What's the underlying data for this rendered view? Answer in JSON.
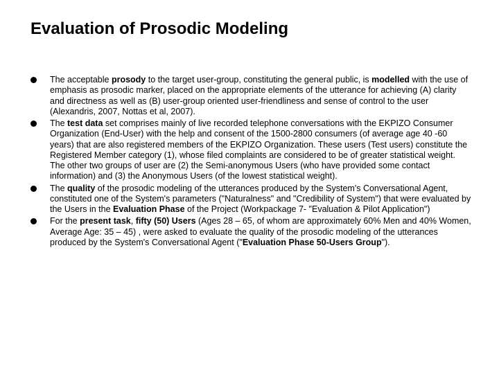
{
  "slide": {
    "title": "Evaluation of Prosodic Modeling",
    "title_fontsize": 24,
    "body_fontsize": 12.5,
    "bullet_color": "#000000",
    "text_color": "#000000",
    "background_color": "#ffffff",
    "bullets": [
      {
        "runs": [
          {
            "t": "The acceptable ",
            "b": false
          },
          {
            "t": "prosody",
            "b": true
          },
          {
            "t": " to the target user-group, constituting the general public, is ",
            "b": false
          },
          {
            "t": "modelled",
            "b": true
          },
          {
            "t": " with the use of emphasis as prosodic marker, placed on the appropriate elements of the utterance for achieving (A) clarity and directness as well as (B) user-group oriented user-friendliness and sense of control to the user (Alexandris, 2007, Nottas et al, 2007).",
            "b": false
          }
        ]
      },
      {
        "runs": [
          {
            "t": "The ",
            "b": false
          },
          {
            "t": "test data",
            "b": true
          },
          {
            "t": " set comprises mainly of live recorded telephone conversations with the EKPIZO Consumer Organization (End-User) with the help and consent of the 1500-2800 consumers (of average age 40 -60 years)  that are also registered members of the EKPIZO Organization. These users (Test users) constitute the Registered Member category (1), whose filed complaints are considered to be of greater statistical weight. The other two groups of user are (2) the Semi-anonymous Users (who have provided some contact information) and (3) the Anonymous Users (of the lowest statistical weight).",
            "b": false
          }
        ]
      },
      {
        "runs": [
          {
            "t": "The ",
            "b": false
          },
          {
            "t": "quality",
            "b": true
          },
          {
            "t": " of the prosodic modeling of the utterances produced by the System's Conversational Agent, constituted one of the System's parameters (\"Naturalness\" and \"Credibility of System\") that were evaluated by the Users in the ",
            "b": false
          },
          {
            "t": "Evaluation Phase",
            "b": true
          },
          {
            "t": " of the Project (Workpackage 7- \"Evaluation & Pilot Application\")",
            "b": false
          }
        ]
      },
      {
        "runs": [
          {
            "t": "For the ",
            "b": false
          },
          {
            "t": "present task",
            "b": true
          },
          {
            "t": ", ",
            "b": false
          },
          {
            "t": "fifty (50) Users",
            "b": true
          },
          {
            "t": " (Ages 28 – 65, of whom are approximately 60% Men and 40% Women, Average Age: 35 – 45) , were asked to evaluate the quality of the prosodic modeling of the utterances produced by the System's Conversational Agent (\"",
            "b": false
          },
          {
            "t": "Evaluation Phase 50-Users Group",
            "b": true
          },
          {
            "t": "\").",
            "b": false
          }
        ]
      }
    ]
  }
}
